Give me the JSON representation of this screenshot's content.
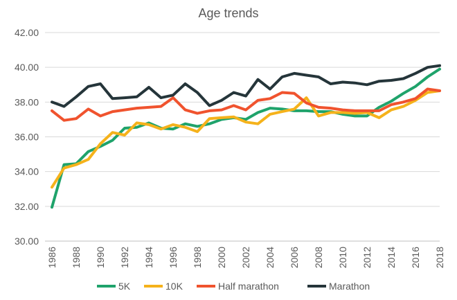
{
  "chart_data": {
    "type": "line",
    "title": "Age trends",
    "xlabel": "",
    "ylabel": "",
    "ylim": [
      30,
      42
    ],
    "yticks": [
      "30.00",
      "32.00",
      "34.00",
      "36.00",
      "38.00",
      "40.00",
      "42.00"
    ],
    "x": [
      1986,
      1987,
      1988,
      1989,
      1990,
      1991,
      1992,
      1993,
      1994,
      1995,
      1996,
      1997,
      1998,
      1999,
      2000,
      2001,
      2002,
      2003,
      2004,
      2005,
      2006,
      2007,
      2008,
      2009,
      2010,
      2011,
      2012,
      2013,
      2014,
      2015,
      2016,
      2017,
      2018
    ],
    "xticks": [
      "1986",
      "1988",
      "1990",
      "1992",
      "1994",
      "1996",
      "1998",
      "2000",
      "2002",
      "2004",
      "2006",
      "2008",
      "2010",
      "2012",
      "2014",
      "2016",
      "2018"
    ],
    "grid": "horizontal",
    "legend_position": "bottom",
    "series": [
      {
        "name": "5K",
        "color": "#1fa36b",
        "values": [
          31.95,
          34.4,
          34.45,
          35.15,
          35.45,
          35.8,
          36.5,
          36.55,
          36.8,
          36.5,
          36.45,
          36.75,
          36.6,
          36.75,
          37.0,
          37.1,
          37.0,
          37.4,
          37.65,
          37.6,
          37.5,
          37.5,
          37.45,
          37.45,
          37.3,
          37.2,
          37.2,
          37.7,
          38.05,
          38.5,
          38.9,
          39.45,
          39.9
        ]
      },
      {
        "name": "10K",
        "color": "#f5b21b",
        "values": [
          33.1,
          34.2,
          34.4,
          34.7,
          35.6,
          36.25,
          36.1,
          36.8,
          36.7,
          36.45,
          36.7,
          36.55,
          36.3,
          37.05,
          37.1,
          37.15,
          36.85,
          36.75,
          37.3,
          37.45,
          37.6,
          38.25,
          37.2,
          37.4,
          37.4,
          37.35,
          37.4,
          37.1,
          37.55,
          37.75,
          38.1,
          38.55,
          38.65
        ]
      },
      {
        "name": "Half marathon",
        "color": "#f0532e",
        "values": [
          37.5,
          36.95,
          37.05,
          37.6,
          37.2,
          37.45,
          37.55,
          37.65,
          37.7,
          37.75,
          38.25,
          37.55,
          37.35,
          37.5,
          37.55,
          37.8,
          37.55,
          38.1,
          38.2,
          38.55,
          38.5,
          37.95,
          37.7,
          37.65,
          37.55,
          37.5,
          37.5,
          37.5,
          37.85,
          38.0,
          38.2,
          38.75,
          38.65
        ]
      },
      {
        "name": "Marathon",
        "color": "#25353a",
        "values": [
          38.0,
          37.75,
          38.3,
          38.9,
          39.05,
          38.2,
          38.25,
          38.3,
          38.85,
          38.25,
          38.4,
          39.05,
          38.55,
          37.8,
          38.1,
          38.55,
          38.35,
          39.3,
          38.75,
          39.45,
          39.65,
          39.55,
          39.45,
          39.05,
          39.15,
          39.1,
          39.0,
          39.2,
          39.25,
          39.35,
          39.65,
          40.0,
          40.1
        ]
      }
    ]
  }
}
